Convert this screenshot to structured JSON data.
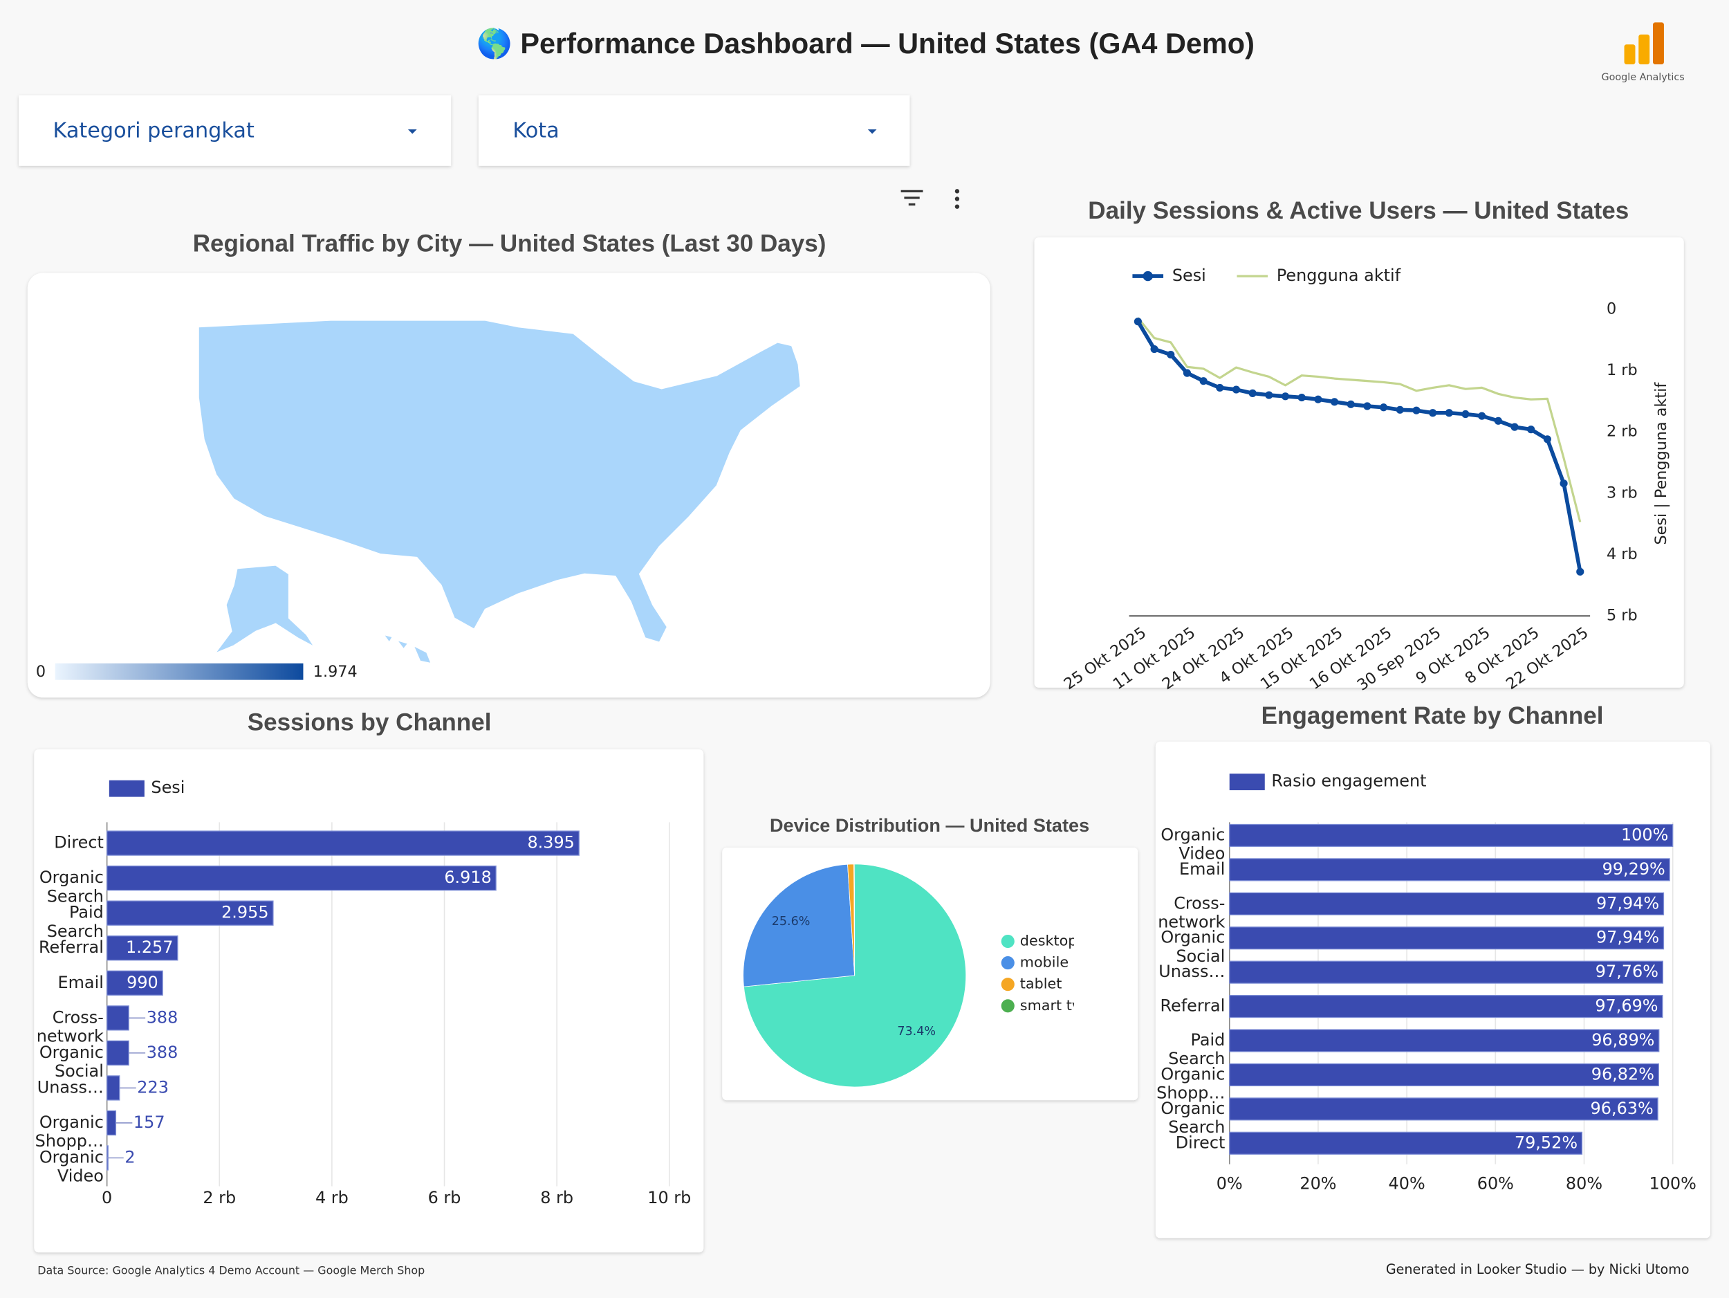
{
  "header": {
    "title": "🌎 Performance Dashboard — United States (GA4 Demo)",
    "logo_text": "Google Analytics"
  },
  "filters": [
    "Kategori perangkat",
    "Kota"
  ],
  "chart_data": [
    {
      "type": "map",
      "title": "Regional Traffic by City — United States (Last 30 Days)",
      "colorscale": [
        0,
        {
          "value": 1974,
          "label": "1.974"
        }
      ],
      "colors": [
        "#eaf4fe",
        "#0d4a9e"
      ],
      "fill": "#aad6fb"
    },
    {
      "type": "line",
      "title": "Daily Sessions & Active Users — United States",
      "categories": [
        "25 Okt 2025",
        null,
        null,
        "11 Okt 2025",
        null,
        null,
        "24 Okt 2025",
        null,
        null,
        "4 Okt 2025",
        null,
        null,
        "15 Okt 2025",
        null,
        null,
        "16 Okt 2025",
        null,
        null,
        "30 Sep 2025",
        null,
        null,
        "9 Okt 2025",
        null,
        null,
        "8 Okt 2025",
        null,
        null,
        "22 Okt 2025"
      ],
      "series": [
        {
          "name": "Sesi",
          "color": "#0b4b9e",
          "markers": true,
          "values": [
            200,
            650,
            740,
            1040,
            1170,
            1280,
            1310,
            1370,
            1400,
            1420,
            1440,
            1470,
            1510,
            1550,
            1580,
            1600,
            1640,
            1650,
            1690,
            1690,
            1710,
            1740,
            1820,
            1920,
            1960,
            2120,
            2840,
            4280
          ]
        },
        {
          "name": "Pengguna aktif",
          "color": "#c3d58e",
          "markers": false,
          "values": [
            140,
            470,
            540,
            940,
            970,
            1120,
            950,
            1030,
            1100,
            1240,
            1080,
            1100,
            1130,
            1150,
            1170,
            1190,
            1220,
            1330,
            1280,
            1240,
            1300,
            1280,
            1380,
            1440,
            1470,
            1460,
            2430,
            3470
          ]
        }
      ],
      "ylim": [
        0,
        5000
      ],
      "reversed": true,
      "yticks": [
        0,
        {
          "value": 1000,
          "label": "1 rb"
        },
        {
          "value": 2000,
          "label": "2 rb"
        },
        {
          "value": 3000,
          "label": "3 rb"
        },
        {
          "value": 4000,
          "label": "4 rb"
        },
        {
          "value": 5000,
          "label": "5 rb"
        }
      ],
      "y_label": "Sesi | Pengguna aktif",
      "legend": "top"
    },
    {
      "type": "hbar",
      "title": "Sessions by Channel",
      "color": "#3a4bb0",
      "categories": [
        "Direct",
        "Organic Search",
        "Paid Search",
        "Referral",
        "Email",
        "Cross-network",
        "Organic Social",
        "Unass…",
        "Organic Shopp…",
        "Organic Video"
      ],
      "series": [
        {
          "name": "Sesi",
          "color": "#3a4bb0",
          "values": [
            8395,
            6918,
            2955,
            1257,
            990,
            388,
            388,
            223,
            157,
            2
          ],
          "value_labels": [
            "8.395",
            "6.918",
            "2.955",
            "1.257",
            "990",
            "388",
            "388",
            "223",
            "157",
            "2"
          ]
        }
      ],
      "xlim": [
        0,
        10000
      ],
      "xticks": [
        0,
        {
          "value": 2000,
          "label": "2 rb"
        },
        {
          "value": 4000,
          "label": "4 rb"
        },
        {
          "value": 6000,
          "label": "6 rb"
        },
        {
          "value": 8000,
          "label": "8 rb"
        },
        {
          "value": 10000,
          "label": "10 rb"
        }
      ],
      "grid": true,
      "legend": "top-left"
    },
    {
      "type": "pie",
      "title": "Device Distribution — United States",
      "categories": [
        "desktop",
        "mobile",
        "tablet",
        "smart tv"
      ],
      "values": [
        73.4,
        25.6,
        0.9,
        0.1
      ],
      "value_labels": [
        "73.4%",
        "25.6%",
        null,
        null
      ],
      "colors": [
        "#4fe3c3",
        "#4a8fe6",
        "#f5a623",
        "#4caf50"
      ],
      "legend": "right"
    },
    {
      "type": "hbar",
      "title": "Engagement Rate by Channel",
      "categories": [
        "Organic Video",
        "Email",
        "Cross-network",
        "Organic Social",
        "Unass…",
        "Referral",
        "Paid Search",
        "Organic Shopp…",
        "Organic Search",
        "Direct"
      ],
      "series": [
        {
          "name": "Rasio engagement",
          "color": "#3a4bb0",
          "values": [
            100,
            99.29,
            97.94,
            97.94,
            97.76,
            97.69,
            96.89,
            96.82,
            96.63,
            79.52
          ],
          "value_labels": [
            "100%",
            "99,29%",
            "97,94%",
            "97,94%",
            "97,76%",
            "97,69%",
            "96,89%",
            "96,82%",
            "96,63%",
            "79,52%"
          ]
        }
      ],
      "xlim": [
        0,
        100
      ],
      "xticks": [
        {
          "value": 0,
          "label": "0%"
        },
        {
          "value": 20,
          "label": "20%"
        },
        {
          "value": 40,
          "label": "40%"
        },
        {
          "value": 60,
          "label": "60%"
        },
        {
          "value": 80,
          "label": "80%"
        },
        {
          "value": 100,
          "label": "100%"
        }
      ],
      "grid": true,
      "legend": "top-left"
    }
  ],
  "footer": {
    "source": "Data Source: Google Analytics 4 Demo Account — Google Merch Shop",
    "credit": "Generated in Looker Studio — by Nicki Utomo"
  }
}
